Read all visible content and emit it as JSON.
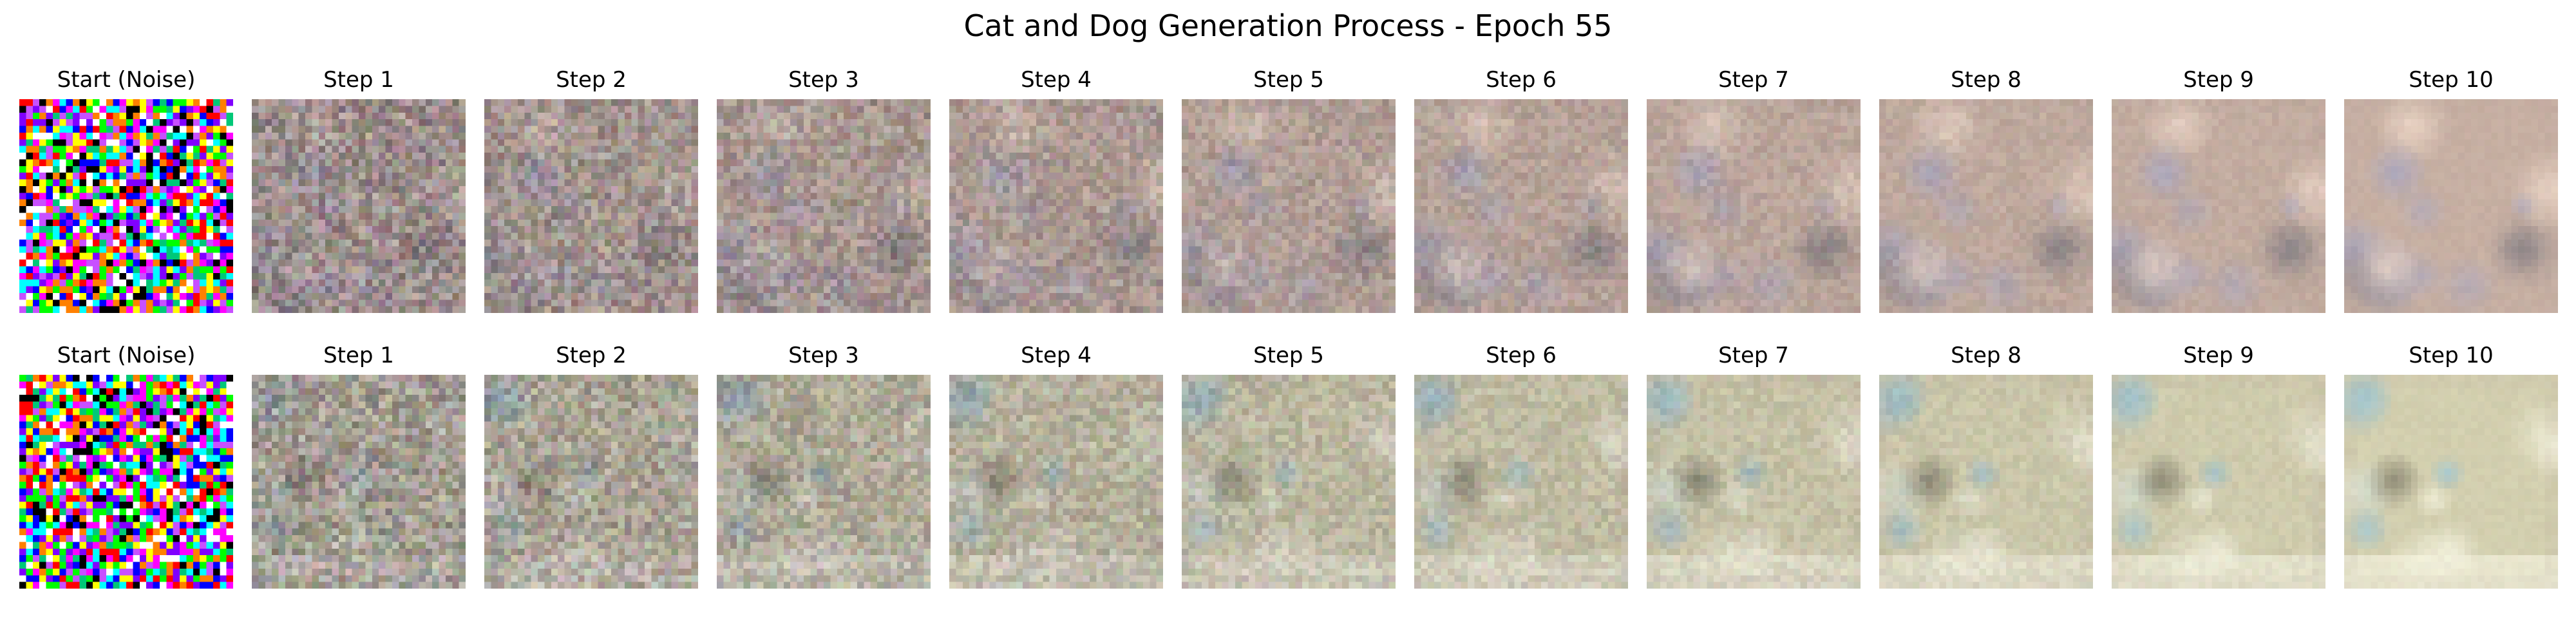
{
  "figure": {
    "title": "Cat and Dog Generation Process - Epoch 55"
  },
  "rows": [
    {
      "panels": [
        {
          "label": "Start (Noise)"
        },
        {
          "label": "Step 1"
        },
        {
          "label": "Step 2"
        },
        {
          "label": "Step 3"
        },
        {
          "label": "Step 4"
        },
        {
          "label": "Step 5"
        },
        {
          "label": "Step 6"
        },
        {
          "label": "Step 7"
        },
        {
          "label": "Step 8"
        },
        {
          "label": "Step 9"
        },
        {
          "label": "Step 10"
        }
      ],
      "palette": {
        "base": "#b79a8c",
        "accent_blue": "#8f8fb8",
        "accent_light": "#f1d6c4",
        "accent_dark": "#5a5662"
      }
    },
    {
      "panels": [
        {
          "label": "Start (Noise)"
        },
        {
          "label": "Step 1"
        },
        {
          "label": "Step 2"
        },
        {
          "label": "Step 3"
        },
        {
          "label": "Step 4"
        },
        {
          "label": "Step 5"
        },
        {
          "label": "Step 6"
        },
        {
          "label": "Step 7"
        },
        {
          "label": "Step 8"
        },
        {
          "label": "Step 9"
        },
        {
          "label": "Step 10"
        }
      ],
      "palette": {
        "base": "#c8c79e",
        "accent_blue": "#86b9c8",
        "accent_light": "#f4f6dc",
        "accent_dark": "#5c5a42"
      }
    }
  ]
}
